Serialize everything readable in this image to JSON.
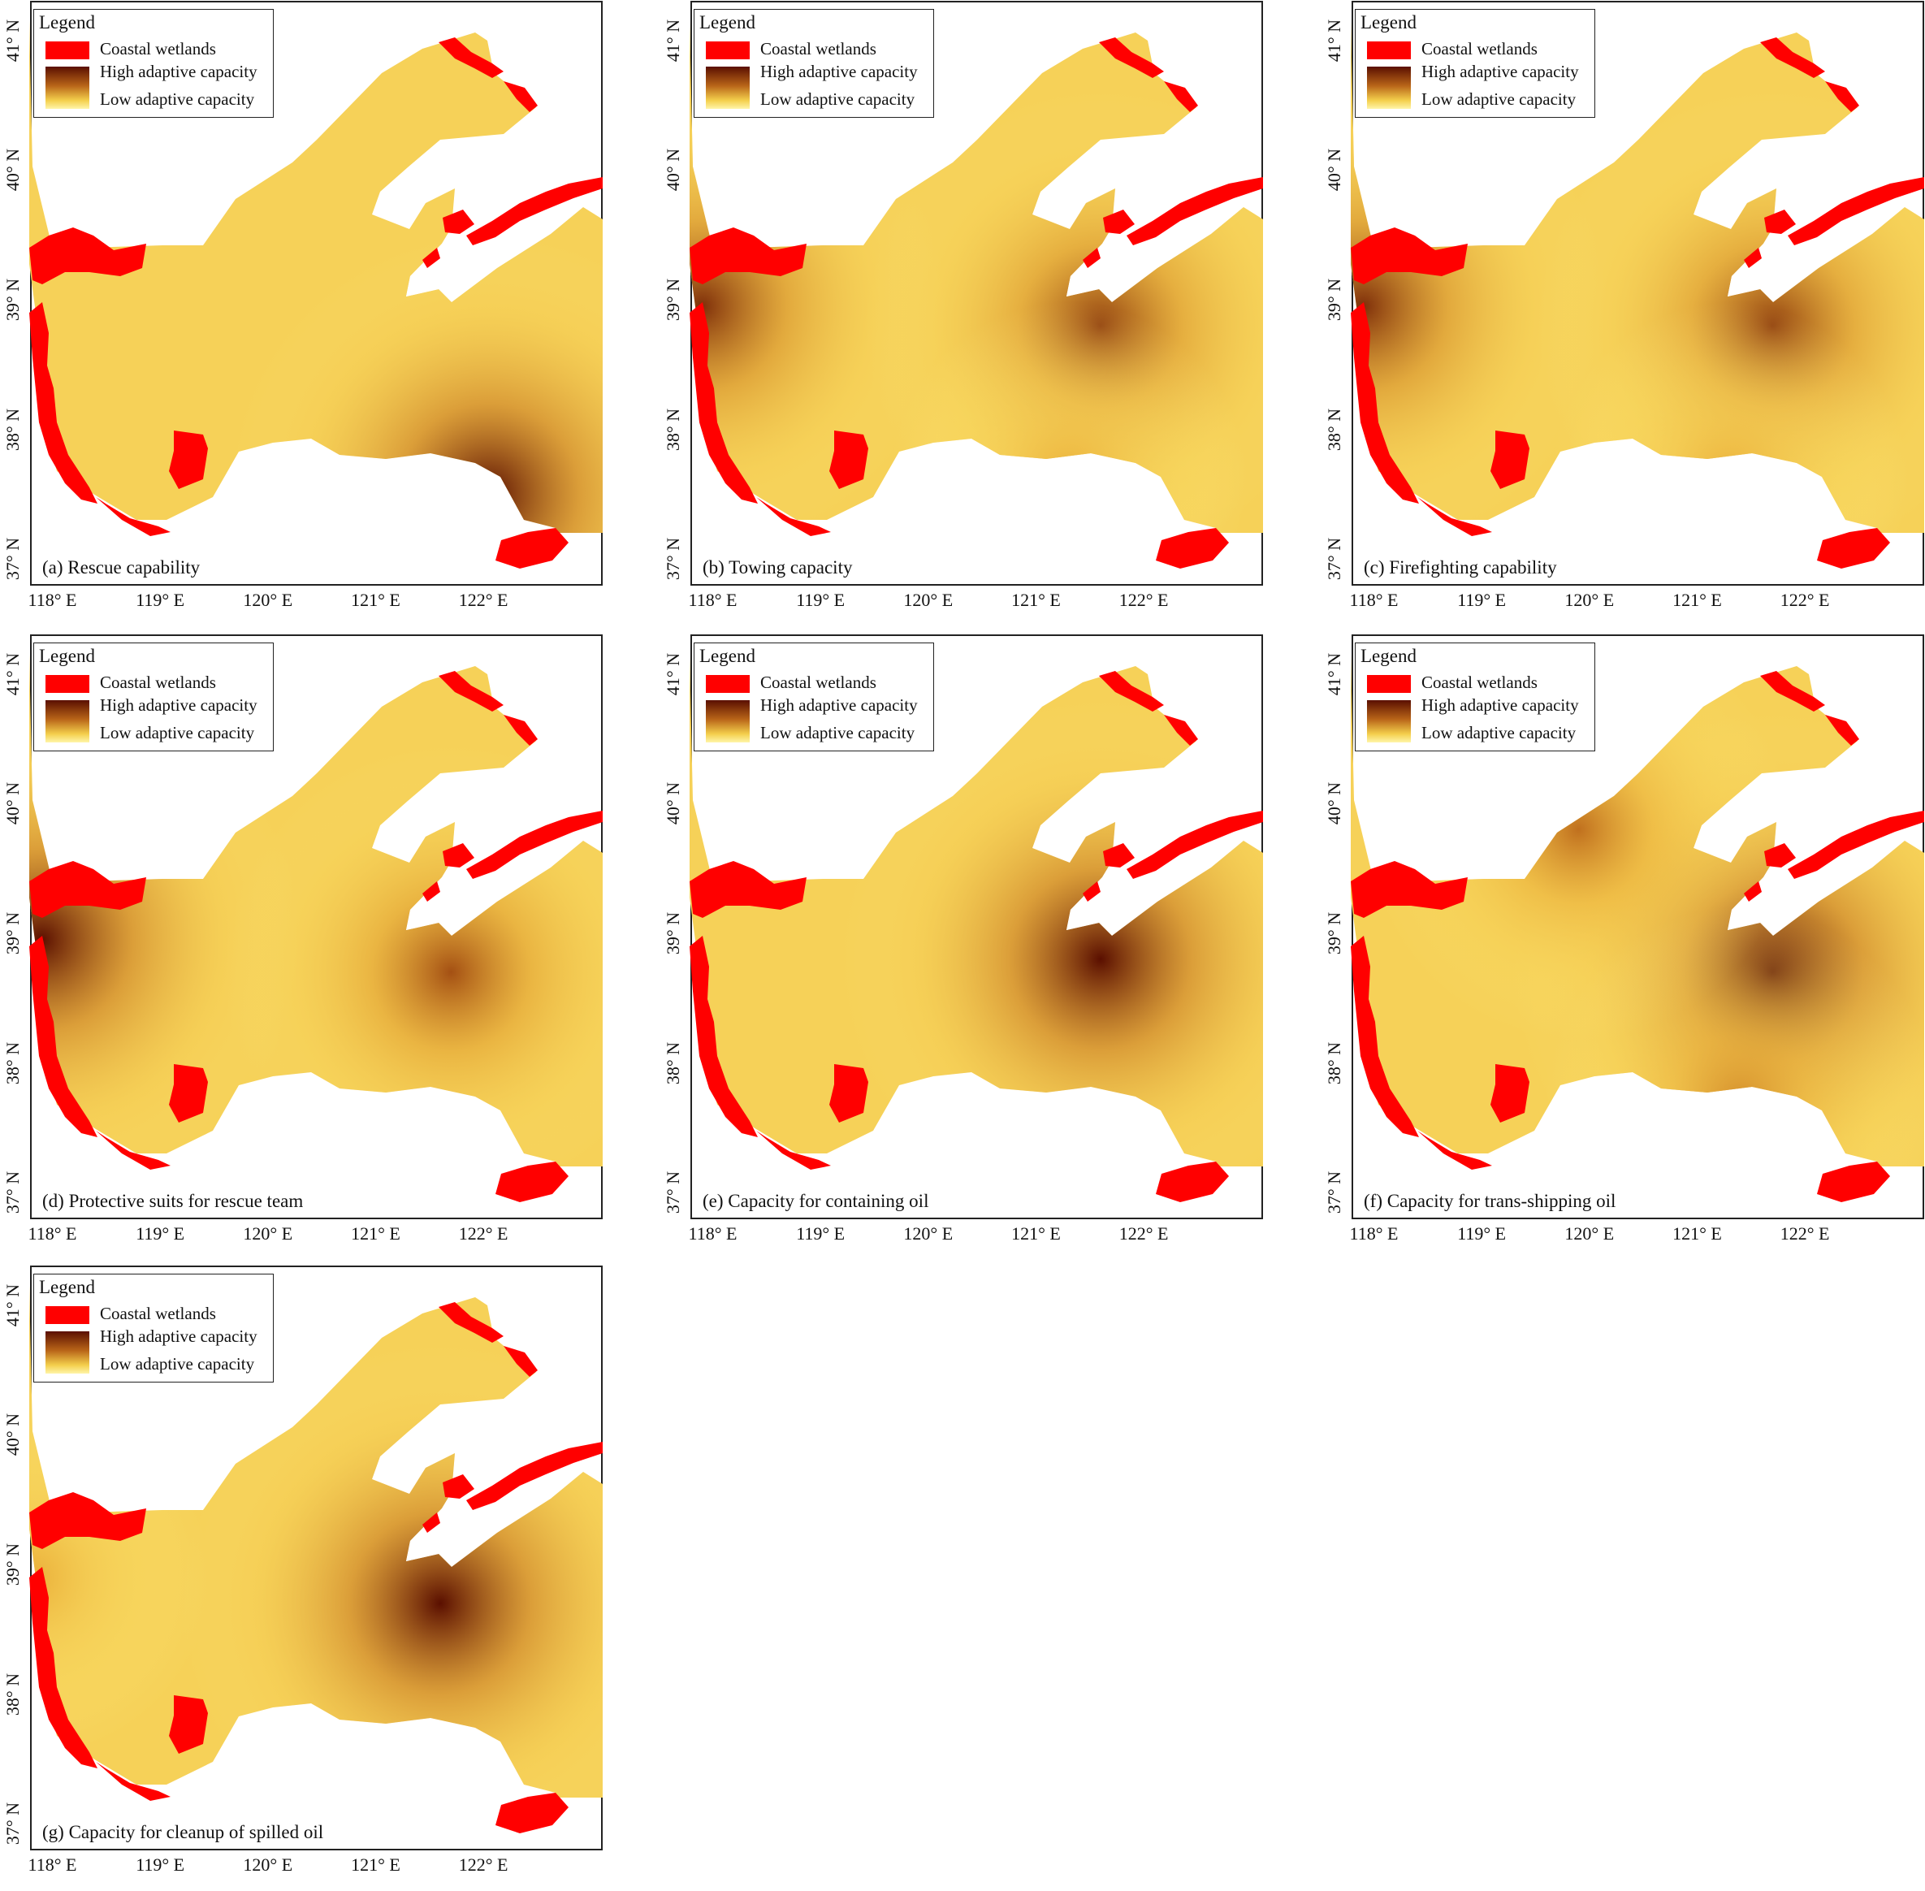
{
  "figure": {
    "x_ticks": [
      "118° E",
      "119° E",
      "120° E",
      "121° E",
      "122° E"
    ],
    "y_ticks": [
      "41° N",
      "40° N",
      "39° N",
      "38° N",
      "37° N"
    ],
    "legend": {
      "title": "Legend",
      "wetlands_label": "Coastal wetlands",
      "high_label": "High adaptive capacity",
      "low_label": "Low adaptive capacity",
      "colors": {
        "wetlands": "#ff0000",
        "high": "#5a0f00",
        "low": "#fff5a8"
      }
    }
  },
  "panels": [
    {
      "id": "a",
      "caption": "(a) Rescue capability",
      "hotspots": [
        {
          "x": 122.05,
          "y": 37.5,
          "strength": 1.0
        }
      ]
    },
    {
      "id": "b",
      "caption": "(b) Towing capacity",
      "hotspots": [
        {
          "x": 117.9,
          "y": 38.95,
          "strength": 0.9
        },
        {
          "x": 121.6,
          "y": 38.8,
          "strength": 0.85
        },
        {
          "x": 121.3,
          "y": 37.6,
          "strength": 0.5
        }
      ]
    },
    {
      "id": "c",
      "caption": "(c) Firefighting capability",
      "hotspots": [
        {
          "x": 117.9,
          "y": 38.95,
          "strength": 0.9
        },
        {
          "x": 121.7,
          "y": 38.8,
          "strength": 0.85
        },
        {
          "x": 121.3,
          "y": 37.6,
          "strength": 0.5
        }
      ]
    },
    {
      "id": "d",
      "caption": "(d) Protective suits for rescue team",
      "hotspots": [
        {
          "x": 117.9,
          "y": 38.95,
          "strength": 1.0
        },
        {
          "x": 121.7,
          "y": 38.7,
          "strength": 0.8
        }
      ]
    },
    {
      "id": "e",
      "caption": "(e) Capacity for containing oil",
      "hotspots": [
        {
          "x": 121.6,
          "y": 38.8,
          "strength": 1.0
        }
      ]
    },
    {
      "id": "f",
      "caption": "(f) Capacity for trans-shipping oil",
      "hotspots": [
        {
          "x": 121.7,
          "y": 38.7,
          "strength": 1.0
        },
        {
          "x": 119.9,
          "y": 39.8,
          "strength": 0.7
        },
        {
          "x": 121.4,
          "y": 37.7,
          "strength": 0.6
        }
      ]
    },
    {
      "id": "g",
      "caption": "(g) Capacity for cleanup of spilled oil",
      "hotspots": [
        {
          "x": 121.6,
          "y": 38.7,
          "strength": 1.0
        },
        {
          "x": 117.8,
          "y": 38.9,
          "strength": 0.5
        }
      ]
    }
  ]
}
